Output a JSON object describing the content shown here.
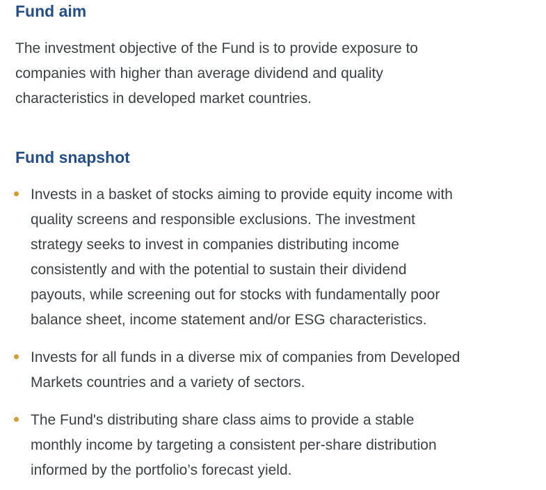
{
  "page": {
    "background_color": "#FFFFFF",
    "heading_color": "#254E87",
    "body_text_color": "#3C4043",
    "bullet_color": "#D09C33"
  },
  "fund_aim": {
    "heading": "Fund aim",
    "paragraph": "The investment objective of the Fund is to provide exposure to\ncompanies with higher than average dividend and quality\ncharacteristics in developed market countries."
  },
  "fund_snapshot": {
    "heading": "Fund snapshot",
    "bullets": [
      "Invests in a basket of stocks aiming to provide equity income with\nquality screens and responsible exclusions. The investment\nstrategy seeks to invest in companies distributing income\nconsistently and with the potential to sustain their dividend\npayouts, while screening out for stocks with fundamentally poor\nbalance sheet, income statement and/or ESG characteristics.",
      "Invests for all funds in a diverse mix of companies from Developed\nMarkets countries and a variety of sectors.",
      "The Fund's distributing share class aims to provide a stable\nmonthly income by targeting a consistent per-share distribution\ninformed by the portfolio’s forecast yield."
    ]
  }
}
